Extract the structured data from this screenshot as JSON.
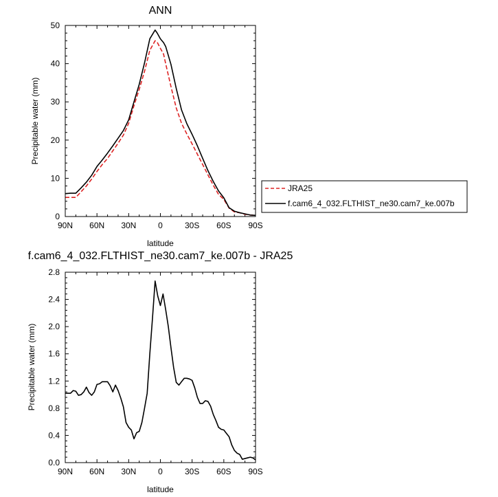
{
  "chart_data": [
    {
      "type": "line",
      "title": "ANN",
      "xlabel": "latitude",
      "ylabel": "Precipitable water (mm)",
      "xlim": [
        90,
        -90
      ],
      "ylim": [
        0,
        50
      ],
      "xticks": [
        90,
        60,
        30,
        0,
        -30,
        -60,
        -90
      ],
      "xtick_labels": [
        "90N",
        "60N",
        "30N",
        "0",
        "30S",
        "60S",
        "90S"
      ],
      "yticks": [
        0,
        10,
        20,
        30,
        40,
        50
      ],
      "ytick_labels": [
        "0",
        "10",
        "20",
        "30",
        "40",
        "50"
      ],
      "legend_position": "right",
      "series": [
        {
          "name": "JRA25",
          "color": "#dd2222",
          "dash": "dashed",
          "x": [
            90,
            85,
            80,
            75,
            70,
            65,
            60,
            55,
            50,
            45,
            40,
            35,
            30,
            25,
            20,
            15,
            10,
            5,
            3,
            0,
            -3,
            -5,
            -10,
            -15,
            -20,
            -25,
            -30,
            -35,
            -40,
            -45,
            -50,
            -55,
            -60,
            -65,
            -70,
            -75,
            -80,
            -85,
            -90
          ],
          "y": [
            5,
            5,
            5,
            6.5,
            8,
            9.8,
            11.8,
            13.6,
            15.2,
            17.2,
            19.2,
            21.3,
            24.4,
            29,
            33.3,
            38,
            43.5,
            46,
            45.6,
            44,
            42.5,
            40,
            34,
            28.4,
            24.4,
            21.6,
            19,
            16.3,
            13.6,
            10.9,
            8.2,
            5.8,
            4.5,
            2.2,
            1.2,
            1.0,
            0.6,
            0.4,
            0.3
          ]
        },
        {
          "name": "f.cam6_4_032.FLTHIST_ne30.cam7_ke.007b",
          "color": "#000000",
          "dash": "solid",
          "x": [
            90,
            85,
            80,
            75,
            70,
            65,
            60,
            55,
            50,
            45,
            40,
            35,
            30,
            25,
            20,
            15,
            10,
            5,
            3,
            0,
            -3,
            -5,
            -10,
            -15,
            -20,
            -25,
            -30,
            -35,
            -40,
            -45,
            -50,
            -55,
            -60,
            -65,
            -70,
            -75,
            -80,
            -85,
            -90
          ],
          "y": [
            6,
            6.1,
            6.1,
            7.5,
            9,
            10.8,
            13.1,
            14.8,
            16.6,
            18.5,
            20.5,
            22.5,
            25.3,
            30,
            34.6,
            40.2,
            46.5,
            48.8,
            48.0,
            46.5,
            45.5,
            44.5,
            39.8,
            33.5,
            27.9,
            24.3,
            21.5,
            18.5,
            15.2,
            12,
            9.2,
            6.7,
            4.9,
            2.3,
            1.4,
            1.0,
            0.7,
            0.4,
            0.3
          ]
        }
      ]
    },
    {
      "type": "line",
      "title": "f.cam6_4_032.FLTHIST_ne30.cam7_ke.007b - JRA25",
      "xlabel": "latitude",
      "ylabel": "Precipitable water (mm)",
      "xlim": [
        90,
        -90
      ],
      "ylim": [
        0,
        2.8
      ],
      "xticks": [
        90,
        60,
        30,
        0,
        -30,
        -60,
        -90
      ],
      "xtick_labels": [
        "90N",
        "60N",
        "30N",
        "0",
        "30S",
        "60S",
        "90S"
      ],
      "yticks": [
        0,
        0.4,
        0.8,
        1.2,
        1.6,
        2.0,
        2.4,
        2.8
      ],
      "ytick_labels": [
        "0.0",
        "0.4",
        "0.8",
        "1.2",
        "1.6",
        "2.0",
        "2.4",
        "2.8"
      ],
      "series": [
        {
          "color": "#000000",
          "dash": "solid",
          "x": [
            90,
            87.5,
            85,
            82.5,
            80,
            77.5,
            75,
            72.5,
            70,
            67.5,
            65,
            62.5,
            60,
            57.5,
            55,
            52.5,
            50,
            47.5,
            45,
            42.5,
            40,
            37.5,
            35,
            32.5,
            30,
            27.5,
            25,
            22.5,
            20,
            17.5,
            15,
            12.5,
            10,
            7.5,
            5,
            2.5,
            0,
            -2.5,
            -5,
            -7.5,
            -10,
            -12.5,
            -15,
            -17.5,
            -20,
            -22.5,
            -25,
            -27.5,
            -30,
            -32.5,
            -35,
            -37.5,
            -40,
            -42.5,
            -45,
            -47.5,
            -50,
            -52.5,
            -55,
            -57.5,
            -60,
            -62.5,
            -65,
            -67.5,
            -70,
            -72.5,
            -75,
            -77.5,
            -80,
            -82.5,
            -85,
            -87.5,
            -90
          ],
          "y": [
            1.02,
            1.02,
            1.02,
            1.06,
            1.05,
            0.99,
            1.0,
            1.04,
            1.11,
            1.03,
            0.99,
            1.04,
            1.15,
            1.16,
            1.19,
            1.19,
            1.19,
            1.13,
            1.04,
            1.14,
            1.06,
            0.95,
            0.82,
            0.59,
            0.52,
            0.48,
            0.35,
            0.44,
            0.46,
            0.59,
            0.8,
            1.02,
            1.6,
            2.12,
            2.67,
            2.45,
            2.31,
            2.48,
            2.25,
            2.0,
            1.69,
            1.4,
            1.18,
            1.14,
            1.19,
            1.24,
            1.24,
            1.23,
            1.21,
            1.1,
            0.96,
            0.87,
            0.87,
            0.91,
            0.9,
            0.83,
            0.71,
            0.62,
            0.52,
            0.49,
            0.48,
            0.43,
            0.38,
            0.26,
            0.18,
            0.14,
            0.12,
            0.05,
            0.06,
            0.07,
            0.08,
            0.07,
            0.04
          ]
        }
      ]
    }
  ]
}
